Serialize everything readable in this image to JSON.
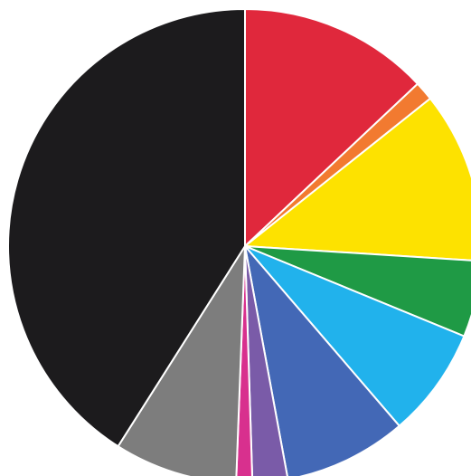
{
  "chart_data": {
    "type": "pie",
    "title": "",
    "start_angle_deg": 0,
    "direction": "clockwise",
    "legend": "none",
    "slices": [
      {
        "value": 13.0,
        "color": "#e0283c"
      },
      {
        "value": 1.3,
        "color": "#f27a30"
      },
      {
        "value": 11.7,
        "color": "#fde200"
      },
      {
        "value": 5.2,
        "color": "#1f9a45"
      },
      {
        "value": 7.5,
        "color": "#21b2ec"
      },
      {
        "value": 8.4,
        "color": "#4368b6"
      },
      {
        "value": 2.4,
        "color": "#7a5ba8"
      },
      {
        "value": 1.1,
        "color": "#d8308e"
      },
      {
        "value": 8.4,
        "color": "#7d7d7d"
      },
      {
        "value": 41.0,
        "color": "#1c1b1d"
      }
    ]
  }
}
